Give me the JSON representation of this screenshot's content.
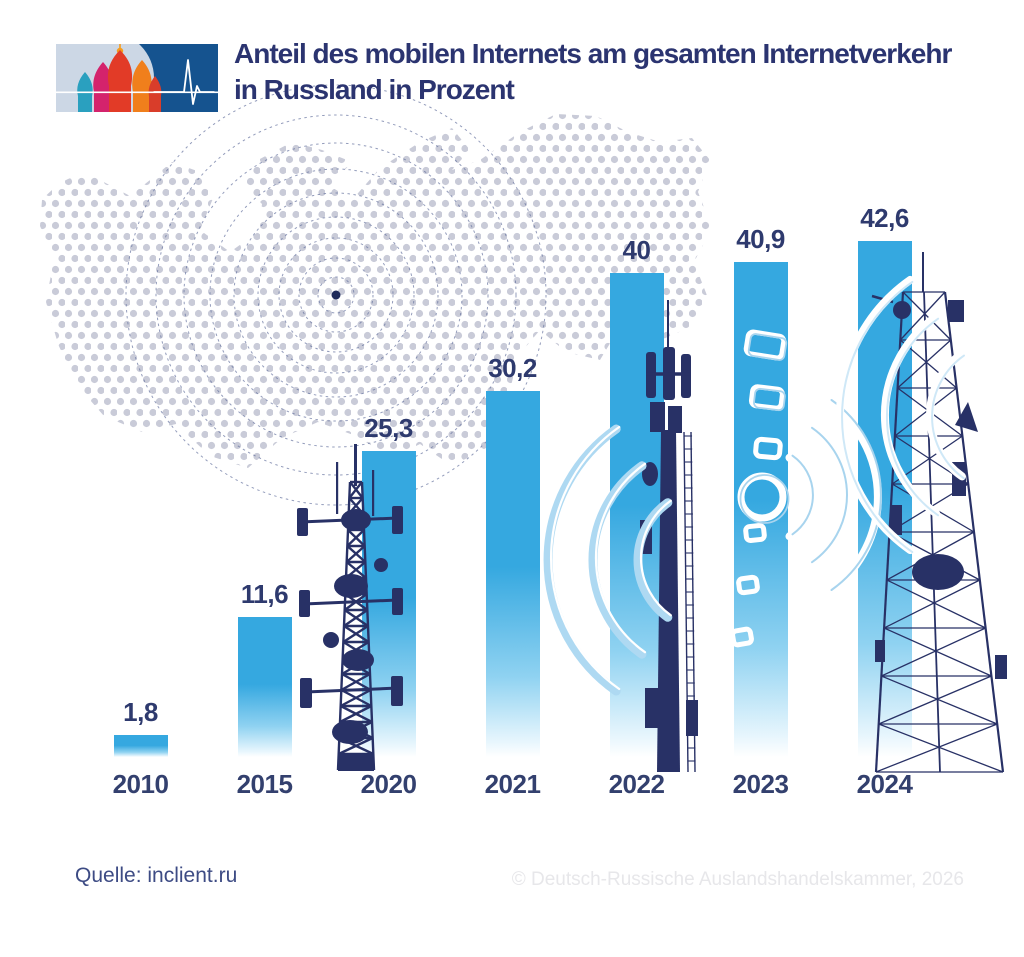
{
  "title": {
    "line1": "Anteil des mobilen Internets am gesamten Internetverkehr",
    "line2": "in Russland in Prozent"
  },
  "chart_data": {
    "type": "bar",
    "title": "Anteil des mobilen Internets am gesamten Internetverkehr in Russland in Prozent",
    "categories": [
      "2010",
      "2015",
      "2020",
      "2021",
      "2022",
      "2023",
      "2024"
    ],
    "values": [
      1.8,
      11.6,
      25.3,
      30.2,
      40,
      40.9,
      42.6
    ],
    "value_labels": [
      "1,8",
      "11,6",
      "25,3",
      "30,2",
      "40",
      "40,9",
      "42,6"
    ],
    "xlabel": "",
    "ylabel": "",
    "ylim": [
      0,
      45
    ],
    "grid": false,
    "legend": false,
    "bar_color": "#35a8e0",
    "label_color": "#2e3a6e"
  },
  "footer": {
    "source": "Quelle: inclient.ru",
    "copyright": "© Deutsch-Russische Auslandshandelskammer, 2026"
  },
  "colors": {
    "accent_blue": "#35a8e0",
    "navy_text": "#2b3470",
    "map_dot_gray": "#c9cbd8",
    "ring_navy": "#66739f",
    "tower_navy": "#283166",
    "wifi_light_blue": "#aed9f2",
    "copyright_gray": "#e7e7ea"
  }
}
